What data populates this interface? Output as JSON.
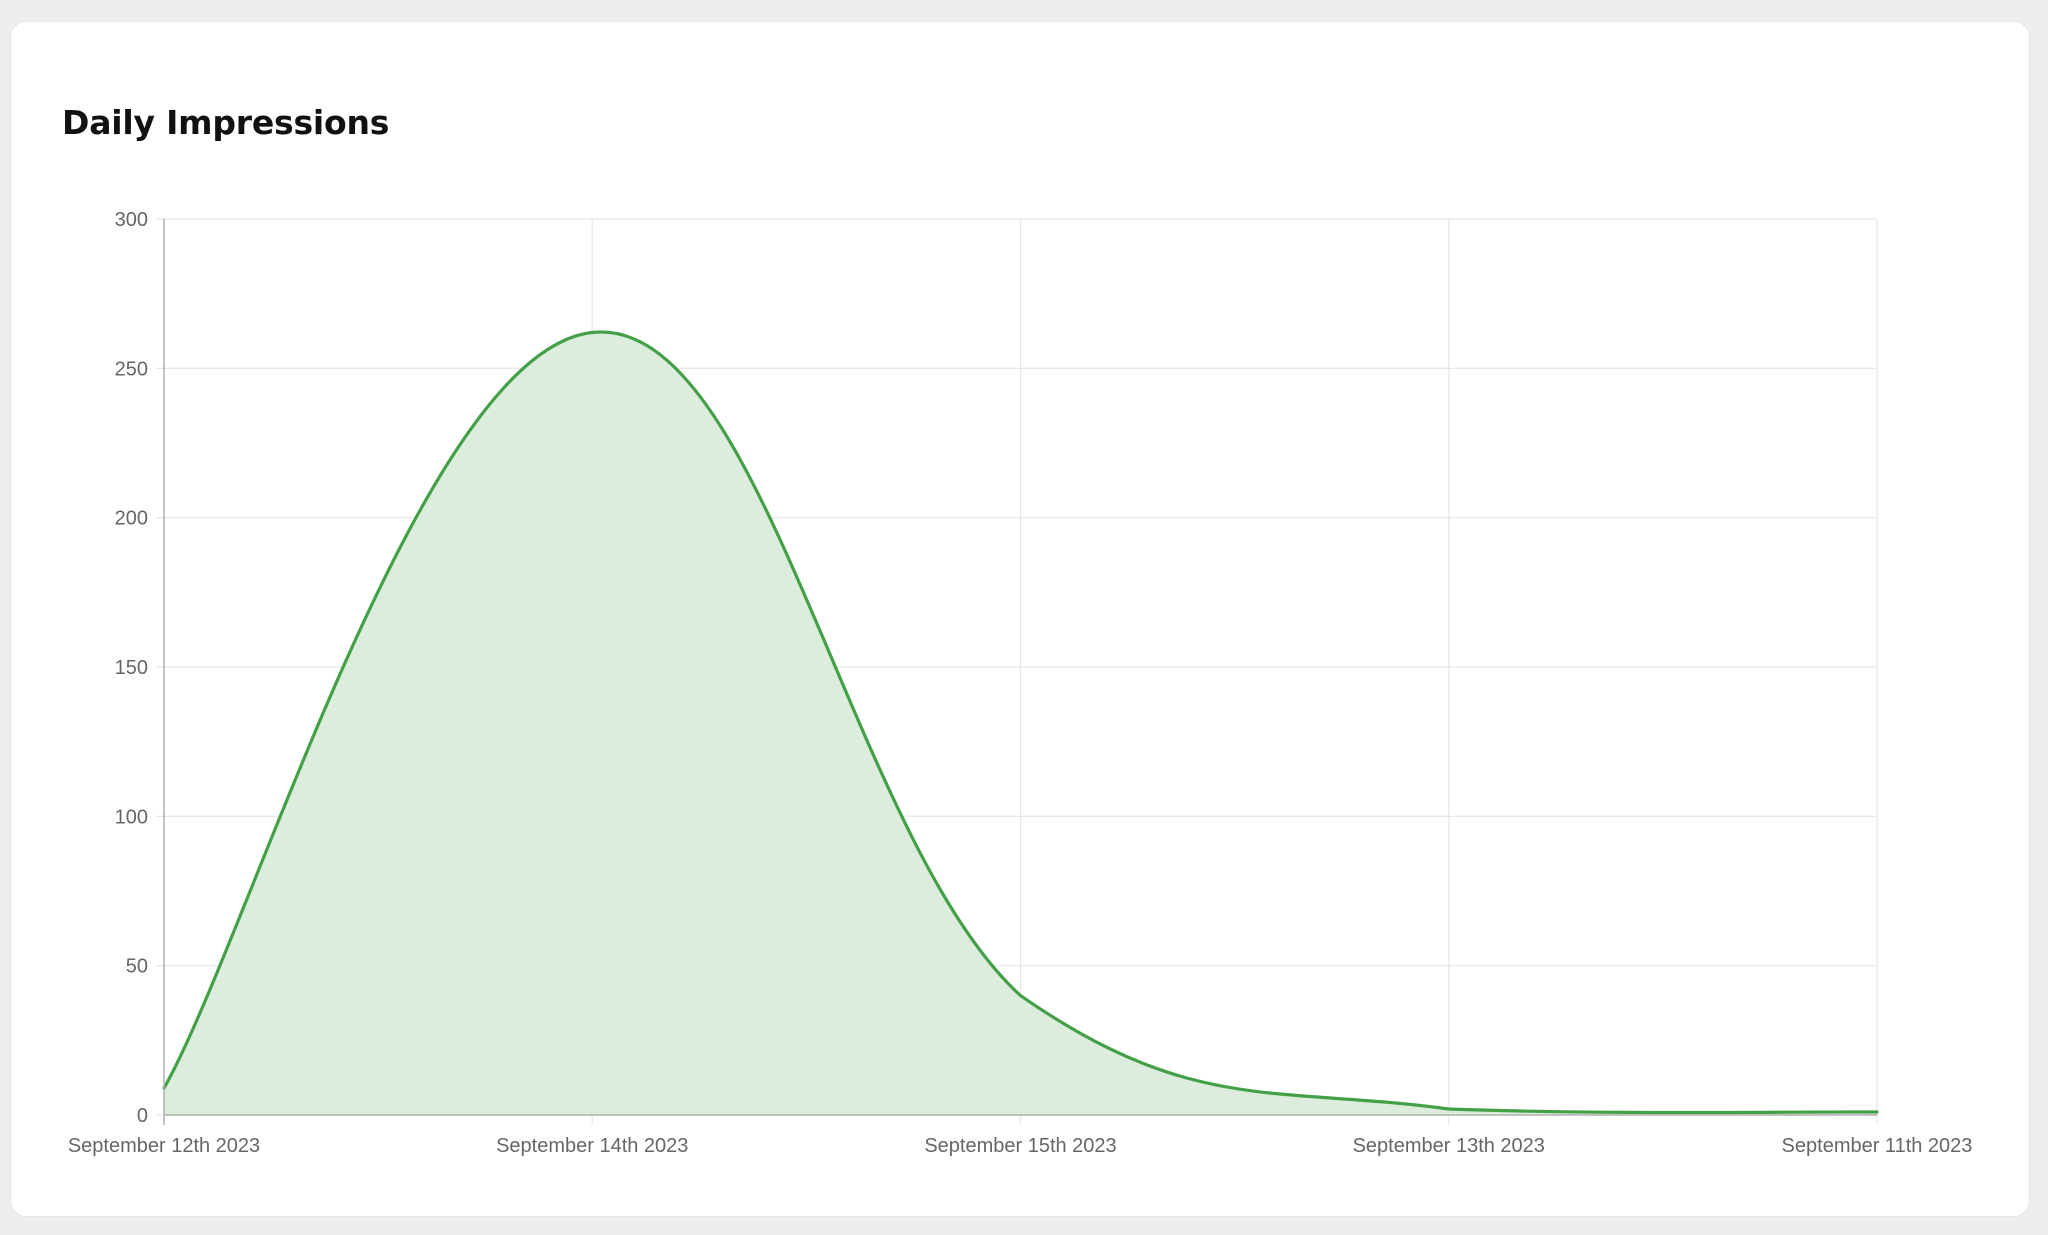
{
  "card": {
    "title": "Daily Impressions"
  },
  "colors": {
    "line": "#43a047",
    "area": "#dcedde",
    "grid": "#e6e6e6",
    "axis": "#b0b0b0"
  },
  "chart_data": {
    "type": "area",
    "title": "Daily Impressions",
    "xlabel": "",
    "ylabel": "",
    "categories": [
      "September 12th 2023",
      "September 14th 2023",
      "September 15th 2023",
      "September 13th 2023",
      "September 11th 2023"
    ],
    "series": [
      {
        "values": [
          9,
          262,
          40,
          2,
          1
        ]
      }
    ],
    "ylim": [
      0,
      300
    ],
    "yticks": [
      0,
      50,
      100,
      150,
      200,
      250,
      300
    ],
    "grid": true,
    "legend": "none",
    "curve": "smooth"
  }
}
